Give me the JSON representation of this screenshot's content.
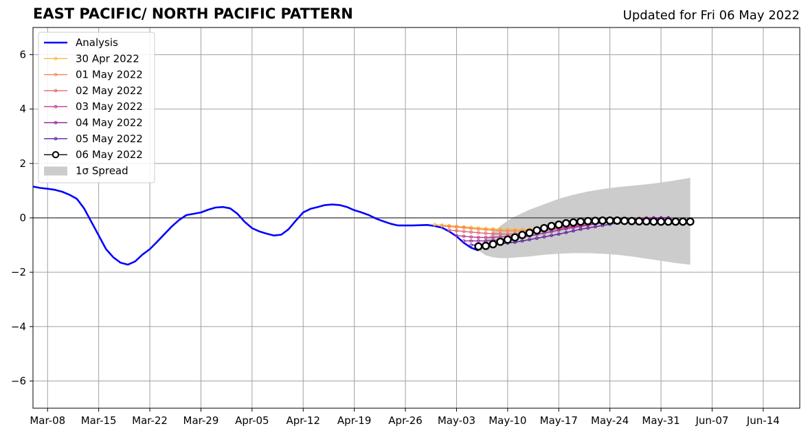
{
  "header": {
    "title": "EAST PACIFIC/ NORTH PACIFIC PATTERN",
    "updated": "Updated for Fri 06 May 2022"
  },
  "chart_data": {
    "type": "line",
    "xlim": [
      "2022-03-06",
      "2022-06-19"
    ],
    "ylim": [
      -7,
      7
    ],
    "x_ticks": [
      {
        "date": "2022-03-08",
        "label": "Mar-08"
      },
      {
        "date": "2022-03-15",
        "label": "Mar-15"
      },
      {
        "date": "2022-03-22",
        "label": "Mar-22"
      },
      {
        "date": "2022-03-29",
        "label": "Mar-29"
      },
      {
        "date": "2022-04-05",
        "label": "Apr-05"
      },
      {
        "date": "2022-04-12",
        "label": "Apr-12"
      },
      {
        "date": "2022-04-19",
        "label": "Apr-19"
      },
      {
        "date": "2022-04-26",
        "label": "Apr-26"
      },
      {
        "date": "2022-05-03",
        "label": "May-03"
      },
      {
        "date": "2022-05-10",
        "label": "May-10"
      },
      {
        "date": "2022-05-17",
        "label": "May-17"
      },
      {
        "date": "2022-05-24",
        "label": "May-24"
      },
      {
        "date": "2022-05-31",
        "label": "May-31"
      },
      {
        "date": "2022-06-07",
        "label": "Jun-07"
      },
      {
        "date": "2022-06-14",
        "label": "Jun-14"
      }
    ],
    "y_ticks": [
      {
        "value": 6,
        "label": "6"
      },
      {
        "value": 4,
        "label": "4"
      },
      {
        "value": 2,
        "label": "2"
      },
      {
        "value": 0,
        "label": "0"
      },
      {
        "value": -2,
        "label": "−2"
      },
      {
        "value": -4,
        "label": "−4"
      },
      {
        "value": -6,
        "label": "−6"
      }
    ],
    "grid": true,
    "legend_position": "top-left",
    "analysis": {
      "name": "Analysis",
      "color": "#0000ff",
      "points": [
        [
          "2022-03-06",
          1.15
        ],
        [
          "2022-03-07",
          1.1
        ],
        [
          "2022-03-08",
          1.07
        ],
        [
          "2022-03-09",
          1.03
        ],
        [
          "2022-03-10",
          0.96
        ],
        [
          "2022-03-11",
          0.85
        ],
        [
          "2022-03-12",
          0.7
        ],
        [
          "2022-03-13",
          0.35
        ],
        [
          "2022-03-14",
          -0.15
        ],
        [
          "2022-03-15",
          -0.65
        ],
        [
          "2022-03-16",
          -1.15
        ],
        [
          "2022-03-17",
          -1.45
        ],
        [
          "2022-03-18",
          -1.65
        ],
        [
          "2022-03-19",
          -1.72
        ],
        [
          "2022-03-20",
          -1.6
        ],
        [
          "2022-03-21",
          -1.35
        ],
        [
          "2022-03-22",
          -1.15
        ],
        [
          "2022-03-23",
          -0.88
        ],
        [
          "2022-03-24",
          -0.6
        ],
        [
          "2022-03-25",
          -0.32
        ],
        [
          "2022-03-26",
          -0.08
        ],
        [
          "2022-03-27",
          0.1
        ],
        [
          "2022-03-28",
          0.15
        ],
        [
          "2022-03-29",
          0.2
        ],
        [
          "2022-03-30",
          0.3
        ],
        [
          "2022-03-31",
          0.38
        ],
        [
          "2022-04-01",
          0.4
        ],
        [
          "2022-04-02",
          0.35
        ],
        [
          "2022-04-03",
          0.15
        ],
        [
          "2022-04-04",
          -0.15
        ],
        [
          "2022-04-05",
          -0.38
        ],
        [
          "2022-04-06",
          -0.5
        ],
        [
          "2022-04-07",
          -0.58
        ],
        [
          "2022-04-08",
          -0.65
        ],
        [
          "2022-04-09",
          -0.62
        ],
        [
          "2022-04-10",
          -0.42
        ],
        [
          "2022-04-11",
          -0.1
        ],
        [
          "2022-04-12",
          0.2
        ],
        [
          "2022-04-13",
          0.33
        ],
        [
          "2022-04-14",
          0.4
        ],
        [
          "2022-04-15",
          0.47
        ],
        [
          "2022-04-16",
          0.49
        ],
        [
          "2022-04-17",
          0.47
        ],
        [
          "2022-04-18",
          0.4
        ],
        [
          "2022-04-19",
          0.28
        ],
        [
          "2022-04-20",
          0.2
        ],
        [
          "2022-04-21",
          0.1
        ],
        [
          "2022-04-22",
          -0.03
        ],
        [
          "2022-04-23",
          -0.13
        ],
        [
          "2022-04-24",
          -0.22
        ],
        [
          "2022-04-25",
          -0.28
        ],
        [
          "2022-04-26",
          -0.28
        ],
        [
          "2022-04-27",
          -0.28
        ],
        [
          "2022-04-28",
          -0.27
        ],
        [
          "2022-04-29",
          -0.26
        ],
        [
          "2022-04-30",
          -0.3
        ],
        [
          "2022-05-01",
          -0.36
        ],
        [
          "2022-05-02",
          -0.5
        ],
        [
          "2022-05-03",
          -0.68
        ],
        [
          "2022-05-04",
          -0.92
        ],
        [
          "2022-05-05",
          -1.1
        ],
        [
          "2022-05-06",
          -1.2
        ]
      ]
    },
    "forecasts": [
      {
        "name": "30 Apr 2022",
        "color": "#fdb53a",
        "start": "2022-04-30",
        "end": "2022-06-01",
        "values": [
          -0.25,
          -0.3,
          -0.35,
          -0.4,
          -0.42,
          -0.42,
          -0.4,
          -0.35,
          -0.28,
          -0.2,
          -0.12,
          -0.05,
          0.0,
          0.0
        ]
      },
      {
        "name": "01 May 2022",
        "color": "#f4844e",
        "start": "2022-05-01",
        "end": "2022-06-01",
        "values": [
          -0.3,
          -0.35,
          -0.42,
          -0.47,
          -0.48,
          -0.45,
          -0.38,
          -0.3,
          -0.2,
          -0.12,
          -0.05,
          0.0,
          0.0
        ]
      },
      {
        "name": "02 May 2022",
        "color": "#e5636a",
        "start": "2022-05-02",
        "end": "2022-06-01",
        "values": [
          -0.45,
          -0.52,
          -0.58,
          -0.6,
          -0.55,
          -0.45,
          -0.35,
          -0.25,
          -0.15,
          -0.08,
          -0.02,
          0.0
        ]
      },
      {
        "name": "03 May 2022",
        "color": "#be3a8e",
        "start": "2022-05-03",
        "end": "2022-06-01",
        "values": [
          -0.65,
          -0.72,
          -0.72,
          -0.65,
          -0.55,
          -0.42,
          -0.3,
          -0.18,
          -0.1,
          -0.03,
          0.0,
          0.0
        ]
      },
      {
        "name": "04 May 2022",
        "color": "#94259e",
        "start": "2022-05-04",
        "end": "2022-06-01",
        "values": [
          -0.85,
          -0.85,
          -0.8,
          -0.7,
          -0.55,
          -0.4,
          -0.28,
          -0.15,
          -0.07,
          0.0,
          0.0
        ]
      },
      {
        "name": "05 May 2022",
        "color": "#5a1b9a",
        "start": "2022-05-05",
        "end": "2022-06-01",
        "values": [
          -1.0,
          -0.98,
          -0.9,
          -0.75,
          -0.6,
          -0.42,
          -0.28,
          -0.15,
          -0.05,
          0.0
        ]
      }
    ],
    "current": {
      "name": "06 May 2022",
      "color": "#000000",
      "points": [
        [
          "2022-05-06",
          -1.05
        ],
        [
          "2022-05-07",
          -1.03
        ],
        [
          "2022-05-08",
          -0.97
        ],
        [
          "2022-05-09",
          -0.88
        ],
        [
          "2022-05-10",
          -0.8
        ],
        [
          "2022-05-11",
          -0.72
        ],
        [
          "2022-05-12",
          -0.63
        ],
        [
          "2022-05-13",
          -0.55
        ],
        [
          "2022-05-14",
          -0.46
        ],
        [
          "2022-05-15",
          -0.38
        ],
        [
          "2022-05-16",
          -0.3
        ],
        [
          "2022-05-17",
          -0.25
        ],
        [
          "2022-05-18",
          -0.2
        ],
        [
          "2022-05-19",
          -0.17
        ],
        [
          "2022-05-20",
          -0.14
        ],
        [
          "2022-05-21",
          -0.12
        ],
        [
          "2022-05-22",
          -0.11
        ],
        [
          "2022-05-23",
          -0.1
        ],
        [
          "2022-05-24",
          -0.1
        ],
        [
          "2022-05-25",
          -0.1
        ],
        [
          "2022-05-26",
          -0.11
        ],
        [
          "2022-05-27",
          -0.12
        ],
        [
          "2022-05-28",
          -0.13
        ],
        [
          "2022-05-29",
          -0.13
        ],
        [
          "2022-05-30",
          -0.14
        ],
        [
          "2022-05-31",
          -0.14
        ],
        [
          "2022-06-01",
          -0.14
        ],
        [
          "2022-06-02",
          -0.14
        ],
        [
          "2022-06-03",
          -0.14
        ],
        [
          "2022-06-04",
          -0.14
        ]
      ]
    },
    "spread": {
      "name": "1σ Spread",
      "color": "#cccccc",
      "points": [
        [
          "2022-05-06",
          -1.2,
          -1.05
        ],
        [
          "2022-05-07",
          -1.38,
          -0.8
        ],
        [
          "2022-05-08",
          -1.45,
          -0.55
        ],
        [
          "2022-05-09",
          -1.48,
          -0.3
        ],
        [
          "2022-05-10",
          -1.48,
          -0.1
        ],
        [
          "2022-05-11",
          -1.46,
          0.05
        ],
        [
          "2022-05-13",
          -1.42,
          0.3
        ],
        [
          "2022-05-15",
          -1.36,
          0.5
        ],
        [
          "2022-05-17",
          -1.32,
          0.7
        ],
        [
          "2022-05-19",
          -1.3,
          0.85
        ],
        [
          "2022-05-21",
          -1.3,
          0.97
        ],
        [
          "2022-05-23",
          -1.32,
          1.06
        ],
        [
          "2022-05-25",
          -1.36,
          1.13
        ],
        [
          "2022-05-27",
          -1.42,
          1.18
        ],
        [
          "2022-05-29",
          -1.5,
          1.23
        ],
        [
          "2022-05-31",
          -1.58,
          1.3
        ],
        [
          "2022-06-02",
          -1.66,
          1.38
        ],
        [
          "2022-06-04",
          -1.72,
          1.47
        ]
      ]
    }
  }
}
